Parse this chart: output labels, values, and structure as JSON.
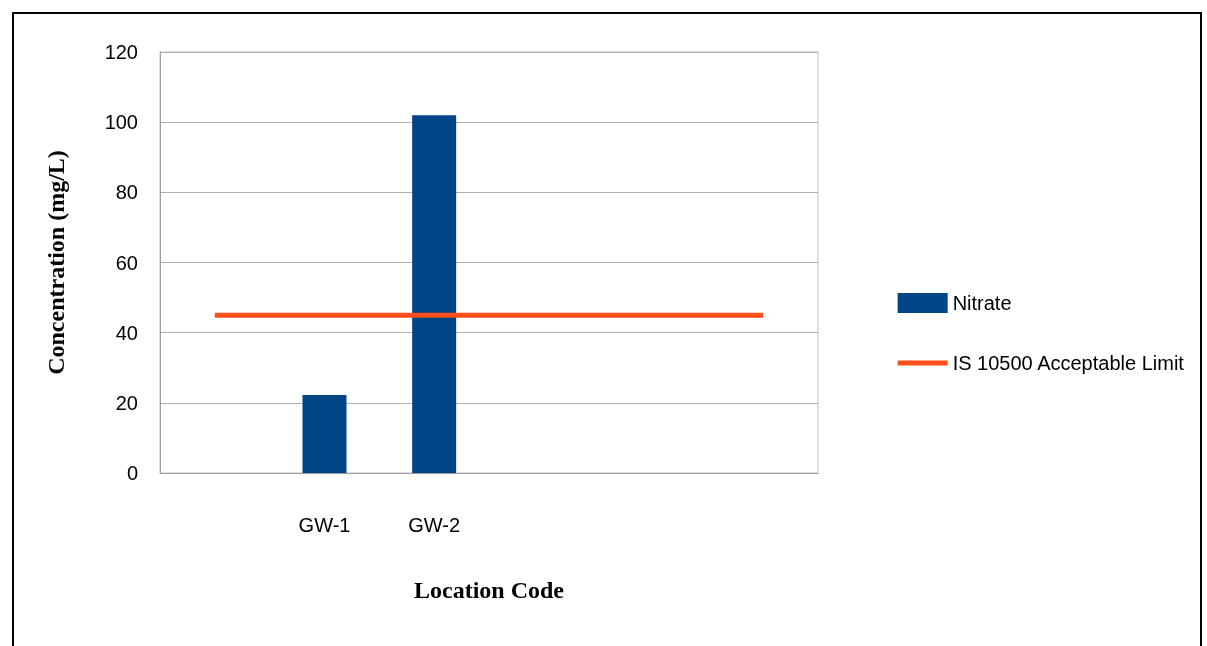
{
  "chart_data": {
    "type": "bar",
    "xlabel": "Location Code",
    "ylabel": "Concentration (mg/L)",
    "categories": [
      null,
      "GW-1",
      "GW-2",
      null,
      null,
      null
    ],
    "series": [
      {
        "name": "Nitrate",
        "color": "#004586",
        "values": [
          null,
          22.2,
          102,
          null,
          null,
          null
        ]
      },
      {
        "name": "IS 10500 Acceptable Limit",
        "type": "line",
        "color": "#ff4e1a",
        "marker": "none",
        "line_style": "solid",
        "values": [
          45,
          45,
          45,
          45,
          45,
          45
        ]
      }
    ],
    "ylim": [
      0,
      120
    ],
    "yticks": [
      0,
      20,
      40,
      60,
      80,
      100,
      120
    ],
    "grid": "y",
    "legend": "right"
  }
}
